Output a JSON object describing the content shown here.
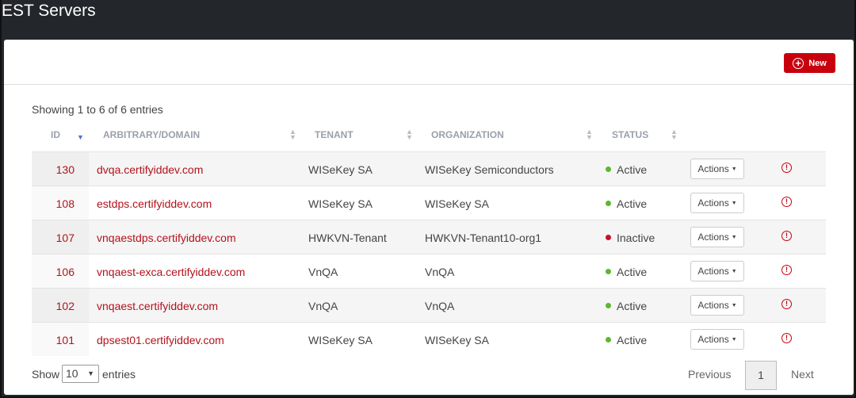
{
  "header": {
    "title": "EST Servers"
  },
  "toolbar": {
    "new_button": "New"
  },
  "table": {
    "info": "Showing 1 to 6 of 6 entries",
    "columns": [
      "ID",
      "ARBITRARY/DOMAIN",
      "TENANT",
      "ORGANIZATION",
      "STATUS"
    ],
    "action_label": "Actions",
    "rows": [
      {
        "id": "130",
        "domain": "dvqa.certifyiddev.com",
        "tenant": "WISeKey SA",
        "organization": "WISeKey Semiconductors",
        "status": "Active",
        "status_color": "#5cb832"
      },
      {
        "id": "108",
        "domain": "estdps.certifyiddev.com",
        "tenant": "WISeKey SA",
        "organization": "WISeKey SA",
        "status": "Active",
        "status_color": "#5cb832"
      },
      {
        "id": "107",
        "domain": "vnqaestdps.certifyiddev.com",
        "tenant": "HWKVN-Tenant",
        "organization": "HWKVN-Tenant10-org1",
        "status": "Inactive",
        "status_color": "#c8102e"
      },
      {
        "id": "106",
        "domain": "vnqaest-exca.certifyiddev.com",
        "tenant": "VnQA",
        "organization": "VnQA",
        "status": "Active",
        "status_color": "#5cb832"
      },
      {
        "id": "102",
        "domain": "vnqaest.certifyiddev.com",
        "tenant": "VnQA",
        "organization": "VnQA",
        "status": "Active",
        "status_color": "#5cb832"
      },
      {
        "id": "101",
        "domain": "dpsest01.certifyiddev.com",
        "tenant": "WISeKey SA",
        "organization": "WISeKey SA",
        "status": "Active",
        "status_color": "#5cb832"
      }
    ]
  },
  "footer": {
    "show": "Show",
    "page_size": "10",
    "entries": "entries",
    "previous": "Previous",
    "page": "1",
    "next": "Next"
  }
}
